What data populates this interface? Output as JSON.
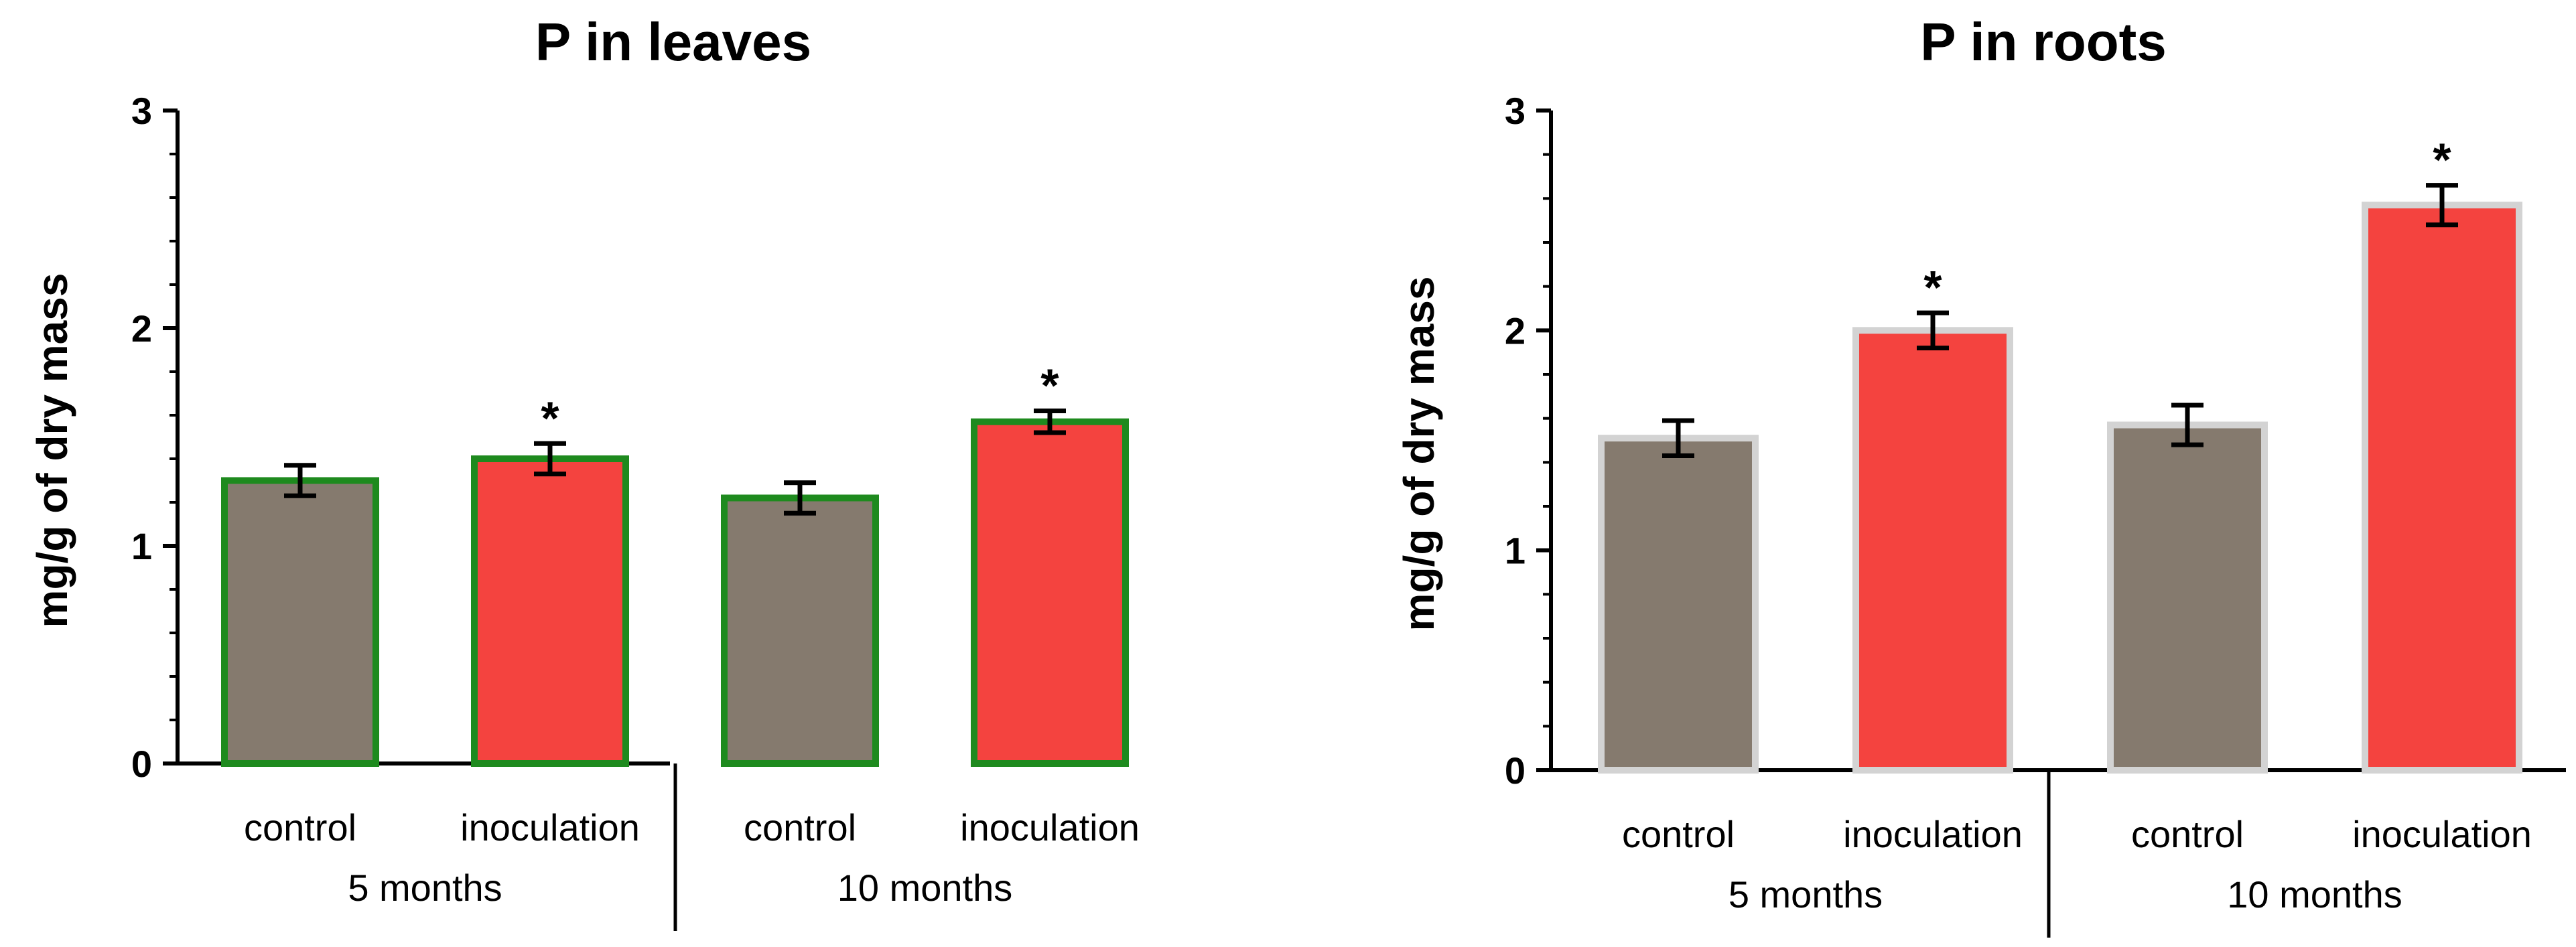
{
  "colors": {
    "control_fill": "#857A6E",
    "inoculation_fill": "#F4433F",
    "leaves_border": "#1E8A1E",
    "roots_border": "#D3D3D3",
    "axis": "#000000",
    "error_bar": "#000000"
  },
  "chart_data": [
    {
      "type": "bar",
      "title": "P in leaves",
      "ylabel": "mg/g of dry mass",
      "xlabel": "",
      "ylim": [
        0,
        3
      ],
      "yticks": [
        "0",
        "1",
        "2",
        "3"
      ],
      "categories": [
        "control",
        "inoculation",
        "control",
        "inoculation"
      ],
      "groups": [
        {
          "label": "5 months",
          "categories": [
            0,
            1
          ]
        },
        {
          "label": "10 months",
          "categories": [
            2,
            3
          ]
        }
      ],
      "values": [
        1.3,
        1.4,
        1.22,
        1.57
      ],
      "errors": [
        0.07,
        0.07,
        0.07,
        0.05
      ],
      "significance": [
        "",
        "*",
        "",
        "*"
      ],
      "bar_colors": [
        "#857A6E",
        "#F4433F",
        "#857A6E",
        "#F4433F"
      ],
      "border_color": "#1E8A1E",
      "grid": false
    },
    {
      "type": "bar",
      "title": "P in roots",
      "ylabel": "mg/g of dry mass",
      "xlabel": "",
      "ylim": [
        0,
        3
      ],
      "yticks": [
        "0",
        "1",
        "2",
        "3"
      ],
      "categories": [
        "control",
        "inoculation",
        "control",
        "inoculation"
      ],
      "groups": [
        {
          "label": "5 months",
          "categories": [
            0,
            1
          ]
        },
        {
          "label": "10 months",
          "categories": [
            2,
            3
          ]
        }
      ],
      "values": [
        1.51,
        2.0,
        1.57,
        2.57
      ],
      "errors": [
        0.08,
        0.08,
        0.09,
        0.09
      ],
      "significance": [
        "",
        "*",
        "",
        "*"
      ],
      "bar_colors": [
        "#857A6E",
        "#F4433F",
        "#857A6E",
        "#F4433F"
      ],
      "border_color": "#D3D3D3",
      "grid": false
    }
  ]
}
